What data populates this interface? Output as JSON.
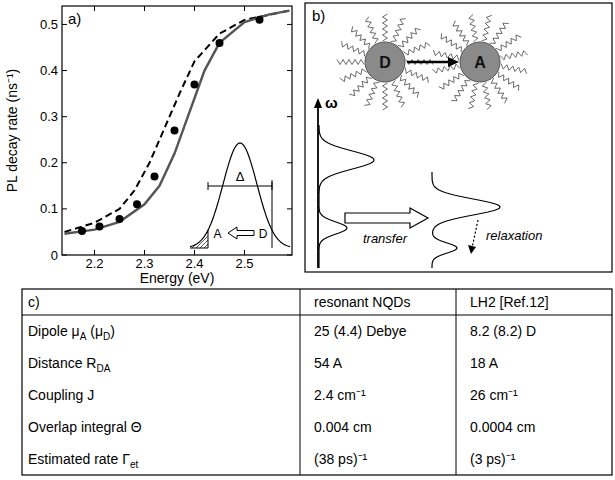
{
  "chart_data": {
    "type": "line",
    "annotations": [
      "a)",
      "Δ",
      "A",
      "D"
    ],
    "x_label": "Energy (eV)",
    "y_label": "PL decay rate (ns⁻¹)",
    "xlim": [
      2.135,
      2.595
    ],
    "xticks": [
      2.2,
      2.3,
      2.4,
      2.5
    ],
    "ylim": [
      0,
      0.54
    ],
    "yticks": [
      0,
      0.1,
      0.2,
      0.3,
      0.4,
      0.5
    ],
    "grid": false,
    "series": [
      {
        "type": "line",
        "line_style": "dashed",
        "color": "#000000",
        "x": [
          2.14,
          2.2,
          2.25,
          2.28,
          2.31,
          2.33,
          2.35,
          2.37,
          2.4,
          2.45,
          2.5,
          2.59
        ],
        "values": [
          0.05,
          0.07,
          0.1,
          0.14,
          0.2,
          0.25,
          0.3,
          0.35,
          0.42,
          0.48,
          0.51,
          0.53
        ]
      },
      {
        "type": "line",
        "line_style": "solid",
        "color": "#555555",
        "x": [
          2.14,
          2.2,
          2.25,
          2.3,
          2.33,
          2.36,
          2.38,
          2.4,
          2.42,
          2.45,
          2.5,
          2.55,
          2.59
        ],
        "values": [
          0.046,
          0.055,
          0.072,
          0.11,
          0.15,
          0.22,
          0.28,
          0.34,
          0.4,
          0.46,
          0.505,
          0.522,
          0.53
        ]
      },
      {
        "type": "scatter",
        "marker": "circle",
        "color": "#000000",
        "x": [
          2.175,
          2.21,
          2.25,
          2.285,
          2.32,
          2.36,
          2.4,
          2.45,
          2.53
        ],
        "values": [
          0.052,
          0.062,
          0.078,
          0.11,
          0.17,
          0.27,
          0.37,
          0.46,
          0.51
        ]
      }
    ]
  },
  "diagram": {
    "label": "b)",
    "nodes": [
      {
        "label": "D"
      },
      {
        "label": "A"
      }
    ],
    "axis_label": "ω",
    "arrows": [
      {
        "label": "transfer"
      },
      {
        "label": "relaxation"
      }
    ]
  },
  "table": {
    "label": "c)",
    "header": [
      "resonant NQDs",
      "LH2 [Ref.12]"
    ],
    "rows": [
      {
        "label": [
          {
            "text": "Dipole μ"
          },
          {
            "text": "A",
            "sub": true
          },
          {
            "text": " (μ"
          },
          {
            "text": "D",
            "sub": true
          },
          {
            "text": ")"
          }
        ],
        "cells": [
          "25 (4.4) Debye",
          "8.2 (8.2) D"
        ]
      },
      {
        "label": [
          {
            "text": "Distance R"
          },
          {
            "text": "DA",
            "sub": true
          }
        ],
        "cells": [
          "54 A",
          "18 A"
        ]
      },
      {
        "label": [
          {
            "text": "Coupling J"
          }
        ],
        "cells": [
          "2.4 cm⁻¹",
          "26 cm⁻¹"
        ]
      },
      {
        "label": [
          {
            "text": "Overlap integral Θ"
          }
        ],
        "cells": [
          "0.004 cm",
          "0.0004 cm"
        ]
      },
      {
        "label": [
          {
            "text": "Estimated rate Γ"
          },
          {
            "text": "et",
            "sub": true
          }
        ],
        "cells": [
          "(38 ps)⁻¹",
          "(3 ps)⁻¹"
        ]
      }
    ]
  }
}
